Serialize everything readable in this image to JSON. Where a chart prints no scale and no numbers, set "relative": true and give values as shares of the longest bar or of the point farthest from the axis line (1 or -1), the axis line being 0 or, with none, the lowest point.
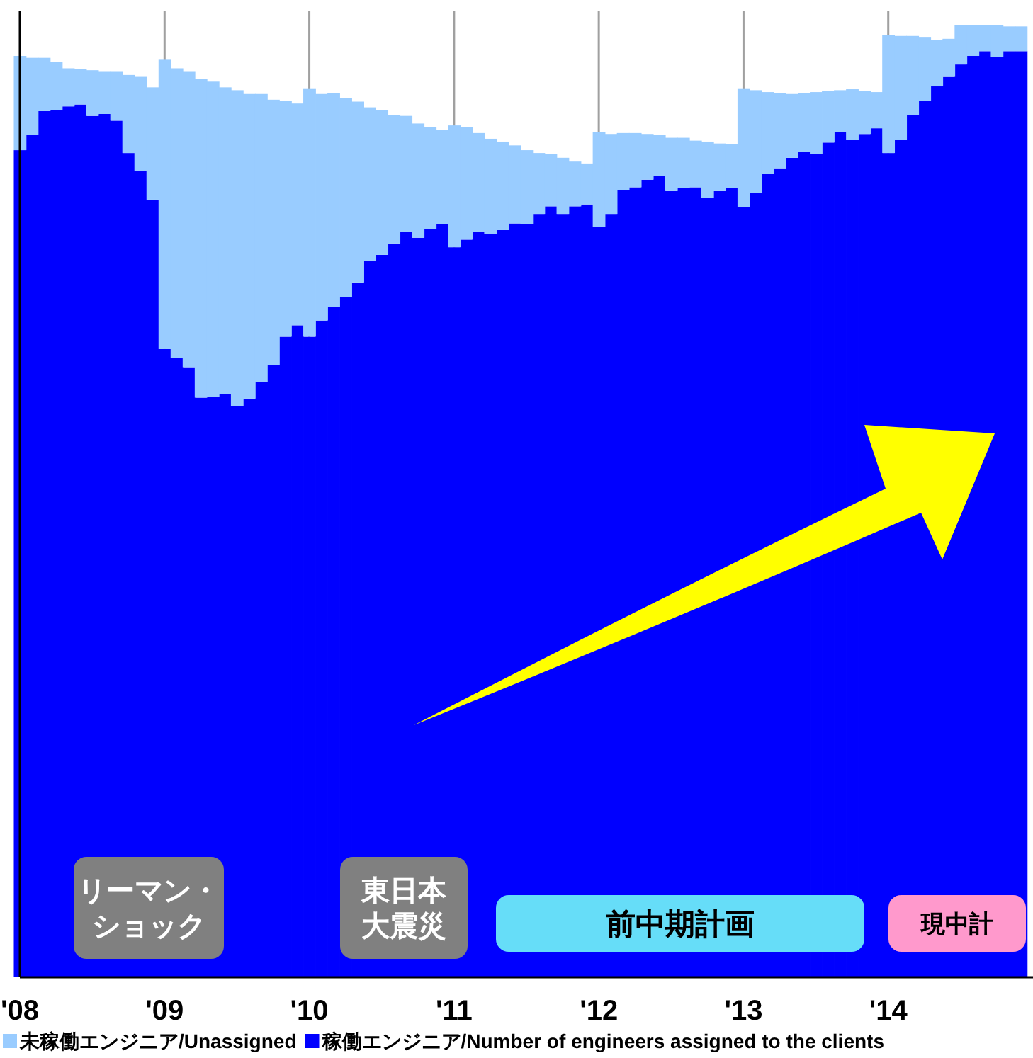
{
  "chart_data": {
    "type": "bar",
    "stacked": true,
    "relative": true,
    "x": [
      "2008-01",
      "2008-02",
      "2008-03",
      "2008-04",
      "2008-05",
      "2008-06",
      "2008-07",
      "2008-08",
      "2008-09",
      "2008-10",
      "2008-11",
      "2008-12",
      "2009-01",
      "2009-02",
      "2009-03",
      "2009-04",
      "2009-05",
      "2009-06",
      "2009-07",
      "2009-08",
      "2009-09",
      "2009-10",
      "2009-11",
      "2009-12",
      "2010-01",
      "2010-02",
      "2010-03",
      "2010-04",
      "2010-05",
      "2010-06",
      "2010-07",
      "2010-08",
      "2010-09",
      "2010-10",
      "2010-11",
      "2010-12",
      "2011-01",
      "2011-02",
      "2011-03",
      "2011-04",
      "2011-05",
      "2011-06",
      "2011-07",
      "2011-08",
      "2011-09",
      "2011-10",
      "2011-11",
      "2011-12",
      "2012-01",
      "2012-02",
      "2012-03",
      "2012-04",
      "2012-05",
      "2012-06",
      "2012-07",
      "2012-08",
      "2012-09",
      "2012-10",
      "2012-11",
      "2012-12",
      "2013-01",
      "2013-02",
      "2013-03",
      "2013-04",
      "2013-05",
      "2013-06",
      "2013-07",
      "2013-08",
      "2013-09",
      "2013-10",
      "2013-11",
      "2013-12",
      "2014-01",
      "2014-02",
      "2014-03",
      "2014-04",
      "2014-05",
      "2014-06",
      "2014-07",
      "2014-08",
      "2014-09",
      "2014-10",
      "2014-11",
      "2014-12"
    ],
    "xlim": [
      "2008-01",
      "2015-01"
    ],
    "xticks": [
      {
        "value": "2008-01",
        "label": "'08"
      },
      {
        "value": "2009-01",
        "label": "'09"
      },
      {
        "value": "2010-01",
        "label": "'10"
      },
      {
        "value": "2011-01",
        "label": "'11"
      },
      {
        "value": "2012-01",
        "label": "'12"
      },
      {
        "value": "2013-01",
        "label": "'13"
      },
      {
        "value": "2014-01",
        "label": "'14"
      }
    ],
    "series": [
      {
        "name": "稼働エンジニア/Number of engineers assigned to the clients",
        "color": "#0000ff",
        "values": [
          0.869,
          0.885,
          0.91,
          0.911,
          0.915,
          0.917,
          0.905,
          0.907,
          0.9,
          0.866,
          0.847,
          0.817,
          0.66,
          0.651,
          0.641,
          0.609,
          0.61,
          0.613,
          0.6,
          0.608,
          0.625,
          0.643,
          0.673,
          0.685,
          0.673,
          0.69,
          0.704,
          0.715,
          0.73,
          0.753,
          0.759,
          0.771,
          0.783,
          0.777,
          0.786,
          0.791,
          0.767,
          0.775,
          0.783,
          0.781,
          0.785,
          0.792,
          0.791,
          0.802,
          0.81,
          0.802,
          0.81,
          0.812,
          0.788,
          0.802,
          0.827,
          0.83,
          0.838,
          0.842,
          0.826,
          0.829,
          0.83,
          0.819,
          0.826,
          0.829,
          0.809,
          0.824,
          0.844,
          0.85,
          0.861,
          0.867,
          0.865,
          0.877,
          0.888,
          0.88,
          0.886,
          0.892,
          0.866,
          0.88,
          0.906,
          0.921,
          0.936,
          0.946,
          0.959,
          0.968,
          0.973,
          0.967,
          0.973,
          0.973
        ]
      },
      {
        "name": "未稼働エンジニア/Unassigned",
        "color": "#99ccff",
        "values": [
          0.099,
          0.081,
          0.056,
          0.051,
          0.04,
          0.037,
          0.048,
          0.045,
          0.052,
          0.082,
          0.099,
          0.118,
          0.304,
          0.304,
          0.311,
          0.335,
          0.331,
          0.322,
          0.332,
          0.32,
          0.303,
          0.279,
          0.248,
          0.233,
          0.261,
          0.238,
          0.225,
          0.209,
          0.19,
          0.161,
          0.152,
          0.135,
          0.122,
          0.12,
          0.107,
          0.099,
          0.128,
          0.118,
          0.104,
          0.1,
          0.093,
          0.082,
          0.078,
          0.064,
          0.055,
          0.059,
          0.047,
          0.043,
          0.1,
          0.084,
          0.06,
          0.057,
          0.048,
          0.043,
          0.056,
          0.053,
          0.049,
          0.059,
          0.05,
          0.046,
          0.125,
          0.108,
          0.086,
          0.079,
          0.067,
          0.062,
          0.065,
          0.054,
          0.044,
          0.053,
          0.045,
          0.038,
          0.124,
          0.109,
          0.083,
          0.067,
          0.049,
          0.04,
          0.041,
          0.032,
          0.027,
          0.033,
          0.026,
          0.026
        ]
      }
    ],
    "ref_lines": [
      {
        "axis": "x",
        "value": "2009-01",
        "color": "#a0a0a0"
      },
      {
        "axis": "x",
        "value": "2010-01",
        "color": "#a0a0a0"
      },
      {
        "axis": "x",
        "value": "2011-01",
        "color": "#a0a0a0"
      },
      {
        "axis": "x",
        "value": "2012-01",
        "color": "#a0a0a0"
      },
      {
        "axis": "x",
        "value": "2013-01",
        "color": "#a0a0a0"
      },
      {
        "axis": "x",
        "value": "2014-01",
        "color": "#a0a0a0"
      }
    ],
    "annotations": [
      "リーマン・ショック",
      "東日本大震災",
      "前中期計画",
      "現中計"
    ],
    "legend": "bottom"
  }
}
